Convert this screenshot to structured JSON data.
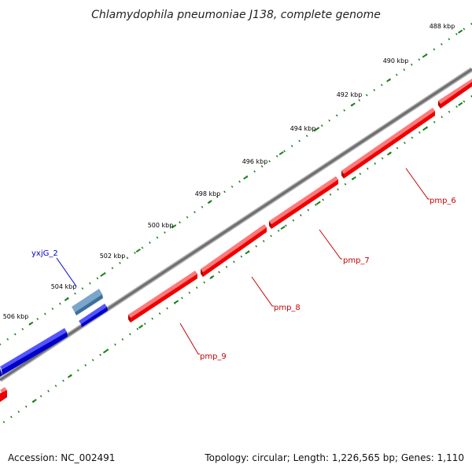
{
  "title": "Chlamydophila pneumoniae J138, complete genome",
  "footer": {
    "accession": "Accession: NC_002491",
    "summary": "Topology: circular; Length: 1,226,565 bp; Genes: 1,110"
  },
  "scale_labels": [
    "488 kbp",
    "490 kbp",
    "492 kbp",
    "494 kbp",
    "496 kbp",
    "498 kbp",
    "500 kbp",
    "502 kbp",
    "504 kbp",
    "506 kbp"
  ],
  "genes": [
    {
      "name": "pmp_6",
      "strand": "reverse"
    },
    {
      "name": "pmp_7",
      "strand": "reverse"
    },
    {
      "name": "pmp_8",
      "strand": "reverse"
    },
    {
      "name": "pmp_9",
      "strand": "reverse"
    },
    {
      "name": "yxjG_2",
      "strand": "forward"
    }
  ],
  "colors": {
    "reverse_gene": "#ff0000",
    "forward_gene": "#0000ee",
    "rna_feature": "#4a7fb0",
    "backbone": "#808080",
    "ticks": "#1a7f1a",
    "forward_label": "#0000cc",
    "reverse_label": "#cc0000"
  }
}
